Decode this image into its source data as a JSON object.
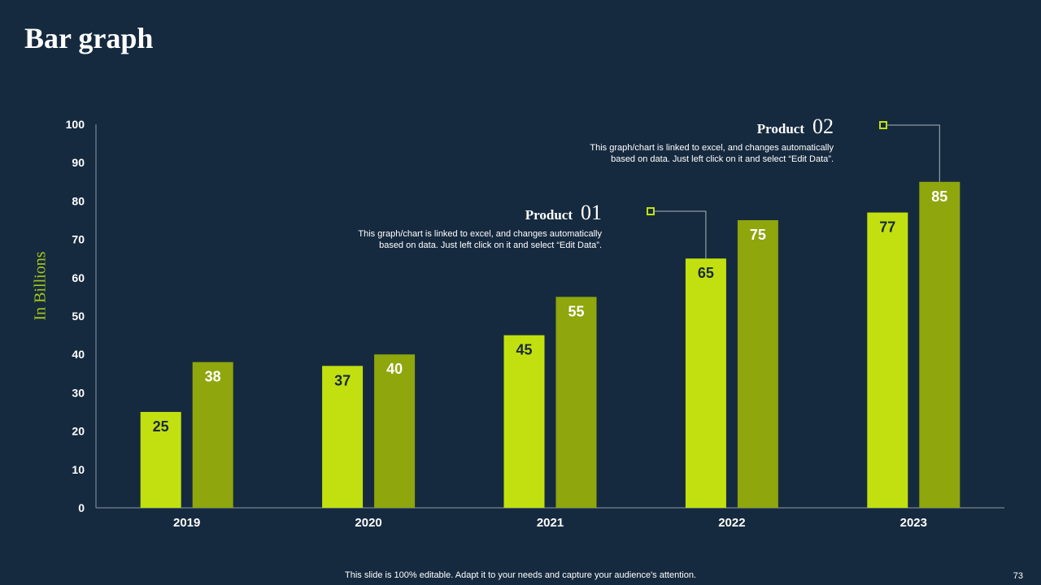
{
  "slide": {
    "title": "Bar graph",
    "footer": "This slide is 100% editable. Adapt it to your needs and capture your audience's attention.",
    "page_number": "73"
  },
  "colors": {
    "series1": "#c2e00f",
    "series2": "#8fa60c",
    "ylabel": "#a3c81a",
    "axis": "#8b99a6",
    "leader": "#aab4be",
    "text": "#ffffff",
    "background": "#162a3f"
  },
  "callouts": [
    {
      "head": "Product",
      "num": "01",
      "desc": "This graph/chart is linked to excel, and changes automatically based on data. Just left click on it and select “Edit Data”."
    },
    {
      "head": "Product",
      "num": "02",
      "desc": "This graph/chart is linked to excel, and changes automatically based on data. Just left click on it and select “Edit Data”."
    }
  ],
  "chart_data": {
    "type": "bar",
    "title": "Bar graph",
    "xlabel": "",
    "ylabel": "In Billions",
    "categories": [
      "2019",
      "2020",
      "2021",
      "2022",
      "2023"
    ],
    "series": [
      {
        "name": "Product 01",
        "values": [
          25,
          37,
          45,
          65,
          77
        ]
      },
      {
        "name": "Product 02",
        "values": [
          38,
          40,
          55,
          75,
          85
        ]
      }
    ],
    "ylim": [
      0,
      100
    ],
    "yticks": [
      0,
      10,
      20,
      30,
      40,
      50,
      60,
      70,
      80,
      90,
      100
    ],
    "grid": false
  }
}
